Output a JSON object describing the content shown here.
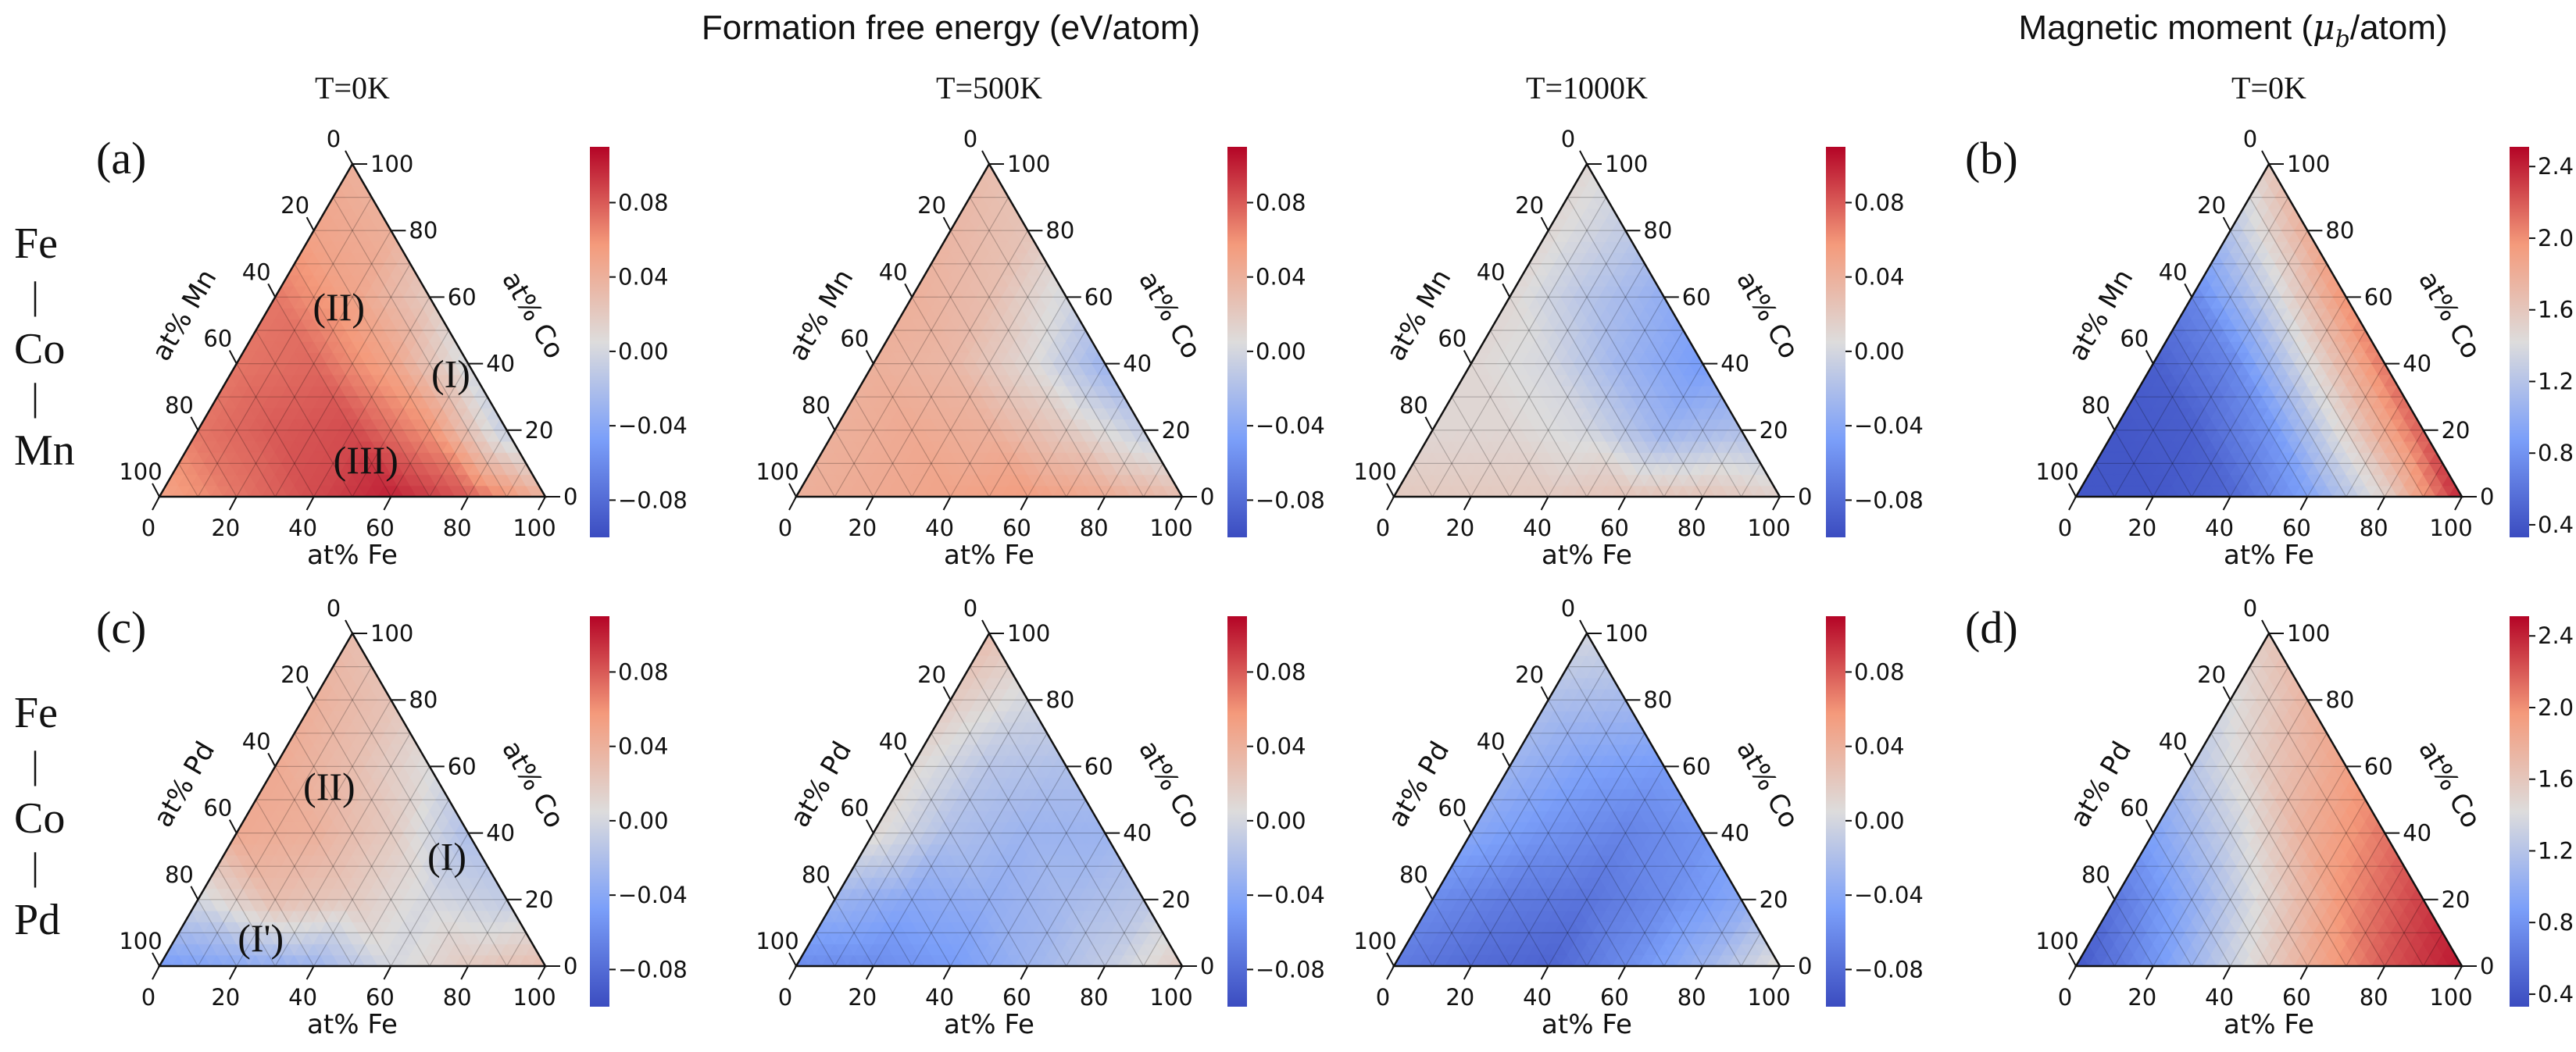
{
  "headers": {
    "formation_title": "Formation free energy (eV/atom)",
    "magnetic_title": {
      "prefix": "Magnetic moment (",
      "symbol": "μ",
      "subscript": "b",
      "suffix": "/atom)"
    }
  },
  "row_labels": [
    {
      "items": [
        "Fe",
        "|",
        "Co",
        "|",
        "Mn"
      ]
    },
    {
      "items": [
        "Fe",
        "|",
        "Co",
        "|",
        "Pd"
      ]
    }
  ],
  "energy_colorbar": {
    "range": [
      -0.1,
      0.11
    ],
    "ticks": [
      0.08,
      0.04,
      0.0,
      -0.04,
      -0.08
    ],
    "tick_labels": [
      "0.08",
      "0.04",
      "0.00",
      "−0.04",
      "−0.08"
    ]
  },
  "magnetic_colorbar": {
    "range": [
      0.33,
      2.51
    ],
    "ticks": [
      2.4,
      2.0,
      1.6,
      1.2,
      0.8,
      0.4
    ],
    "tick_labels": [
      "2.4",
      "2.0",
      "1.6",
      "1.2",
      "0.8",
      "0.4"
    ]
  },
  "colormap": {
    "name": "coolwarm",
    "stops": [
      "#3b4cc0",
      "#7b9ff9",
      "#dddcdc",
      "#f49a7b",
      "#b40426"
    ]
  },
  "chart_data": [
    {
      "type": "heatmap",
      "subtype": "ternary",
      "row": 0,
      "col": 0,
      "panel_label": "(a)",
      "title": "T=0K",
      "quantity": "energy",
      "axes": {
        "bottom": "at% Fe",
        "right": "at% Co",
        "left": "at% Mn"
      },
      "tick_labels": [
        "0",
        "20",
        "40",
        "60",
        "80",
        "100"
      ],
      "grid_note": "values_by_co[i][j] at Co = 20*i, Fe = 20*j (eV/atom)",
      "values_by_co": [
        [
          0.05,
          0.07,
          0.085,
          0.1,
          0.08,
          0.04
        ],
        [
          0.07,
          0.08,
          0.085,
          0.06,
          -0.01
        ],
        [
          0.07,
          0.075,
          0.05,
          0.0
        ],
        [
          0.07,
          0.05,
          0.02
        ],
        [
          0.05,
          0.04
        ],
        [
          0.04
        ]
      ],
      "annotations": [
        {
          "text": "(II)",
          "fe": 18,
          "co": 57
        },
        {
          "text": "(I)",
          "fe": 57,
          "co": 37
        },
        {
          "text": "(III)",
          "fe": 48,
          "co": 11
        }
      ]
    },
    {
      "type": "heatmap",
      "subtype": "ternary",
      "row": 0,
      "col": 1,
      "panel_label": "",
      "title": "T=500K",
      "quantity": "energy",
      "axes": {
        "bottom": "at% Fe",
        "right": "at% Co",
        "left": "at% Mn"
      },
      "tick_labels": [
        "0",
        "20",
        "40",
        "60",
        "80",
        "100"
      ],
      "values_by_co": [
        [
          0.04,
          0.045,
          0.05,
          0.055,
          0.045,
          0.03
        ],
        [
          0.04,
          0.045,
          0.04,
          0.02,
          -0.01
        ],
        [
          0.04,
          0.035,
          0.01,
          -0.03
        ],
        [
          0.04,
          0.03,
          0.0
        ],
        [
          0.035,
          0.025
        ],
        [
          0.03
        ]
      ],
      "annotations": []
    },
    {
      "type": "heatmap",
      "subtype": "ternary",
      "row": 0,
      "col": 2,
      "panel_label": "",
      "title": "T=1000K",
      "quantity": "energy",
      "axes": {
        "bottom": "at% Fe",
        "right": "at% Co",
        "left": "at% Mn"
      },
      "tick_labels": [
        "0",
        "20",
        "40",
        "60",
        "80",
        "100"
      ],
      "values_by_co": [
        [
          0.02,
          0.02,
          0.02,
          0.025,
          0.025,
          0.015
        ],
        [
          0.01,
          0.01,
          0.0,
          -0.03,
          -0.02
        ],
        [
          0.01,
          0.0,
          -0.03,
          -0.05
        ],
        [
          0.01,
          -0.015,
          -0.035
        ],
        [
          0.01,
          -0.01
        ],
        [
          0.01
        ]
      ],
      "annotations": []
    },
    {
      "type": "heatmap",
      "subtype": "ternary",
      "row": 0,
      "col": 3,
      "panel_label": "(b)",
      "title": "T=0K",
      "quantity": "magnetic",
      "axes": {
        "bottom": "at% Fe",
        "right": "at% Co",
        "left": "at% Mn"
      },
      "tick_labels": [
        "0",
        "20",
        "40",
        "60",
        "80",
        "100"
      ],
      "values_by_co": [
        [
          0.4,
          0.4,
          0.5,
          0.9,
          1.5,
          2.4
        ],
        [
          0.4,
          0.45,
          0.8,
          1.5,
          2.2
        ],
        [
          0.45,
          0.7,
          1.4,
          2.1
        ],
        [
          0.7,
          1.3,
          2.0
        ],
        [
          1.2,
          1.8
        ],
        [
          1.6
        ]
      ],
      "annotations": []
    },
    {
      "type": "heatmap",
      "subtype": "ternary",
      "row": 1,
      "col": 0,
      "panel_label": "(c)",
      "title": "",
      "quantity": "energy",
      "axes": {
        "bottom": "at% Fe",
        "right": "at% Co",
        "left": "at% Pd"
      },
      "tick_labels": [
        "0",
        "20",
        "40",
        "60",
        "80",
        "100"
      ],
      "values_by_co": [
        [
          -0.05,
          -0.04,
          -0.03,
          0.0,
          0.02,
          0.03
        ],
        [
          0.0,
          0.03,
          0.02,
          0.0,
          -0.01
        ],
        [
          0.045,
          0.04,
          0.02,
          -0.02
        ],
        [
          0.045,
          0.03,
          0.005
        ],
        [
          0.04,
          0.025
        ],
        [
          0.03
        ]
      ],
      "annotations": [
        {
          "text": "(II)",
          "fe": 17,
          "co": 54
        },
        {
          "text": "(I)",
          "fe": 58,
          "co": 33
        },
        {
          "text": "(I')",
          "fe": 22,
          "co": 8.5
        }
      ]
    },
    {
      "type": "heatmap",
      "subtype": "ternary",
      "row": 1,
      "col": 1,
      "panel_label": "",
      "title": "",
      "quantity": "energy",
      "axes": {
        "bottom": "at% Fe",
        "right": "at% Co",
        "left": "at% Pd"
      },
      "tick_labels": [
        "0",
        "20",
        "40",
        "60",
        "80",
        "100"
      ],
      "values_by_co": [
        [
          -0.06,
          -0.06,
          -0.05,
          -0.03,
          -0.01,
          0.02
        ],
        [
          -0.03,
          -0.04,
          -0.035,
          -0.025,
          -0.015
        ],
        [
          0.01,
          -0.02,
          -0.03,
          -0.03
        ],
        [
          0.01,
          -0.015,
          -0.02
        ],
        [
          0.02,
          0.0
        ],
        [
          0.03
        ]
      ],
      "annotations": []
    },
    {
      "type": "heatmap",
      "subtype": "ternary",
      "row": 1,
      "col": 2,
      "panel_label": "",
      "title": "",
      "quantity": "energy",
      "axes": {
        "bottom": "at% Fe",
        "right": "at% Co",
        "left": "at% Pd"
      },
      "tick_labels": [
        "0",
        "20",
        "40",
        "60",
        "80",
        "100"
      ],
      "values_by_co": [
        [
          -0.07,
          -0.08,
          -0.085,
          -0.06,
          -0.03,
          0.01
        ],
        [
          -0.06,
          -0.07,
          -0.075,
          -0.06,
          -0.04
        ],
        [
          -0.04,
          -0.055,
          -0.065,
          -0.055
        ],
        [
          -0.03,
          -0.045,
          -0.05
        ],
        [
          -0.02,
          -0.025
        ],
        [
          0.0
        ]
      ],
      "annotations": []
    },
    {
      "type": "heatmap",
      "subtype": "ternary",
      "row": 1,
      "col": 3,
      "panel_label": "(d)",
      "title": "",
      "quantity": "magnetic",
      "axes": {
        "bottom": "at% Fe",
        "right": "at% Co",
        "left": "at% Pd"
      },
      "tick_labels": [
        "0",
        "20",
        "40",
        "60",
        "80",
        "100"
      ],
      "values_by_co": [
        [
          0.4,
          0.8,
          1.3,
          1.8,
          2.2,
          2.45
        ],
        [
          0.6,
          1.0,
          1.5,
          2.0,
          2.3
        ],
        [
          0.9,
          1.3,
          1.8,
          2.1
        ],
        [
          1.2,
          1.6,
          1.9
        ],
        [
          1.4,
          1.75
        ],
        [
          1.6
        ]
      ],
      "annotations": []
    }
  ]
}
